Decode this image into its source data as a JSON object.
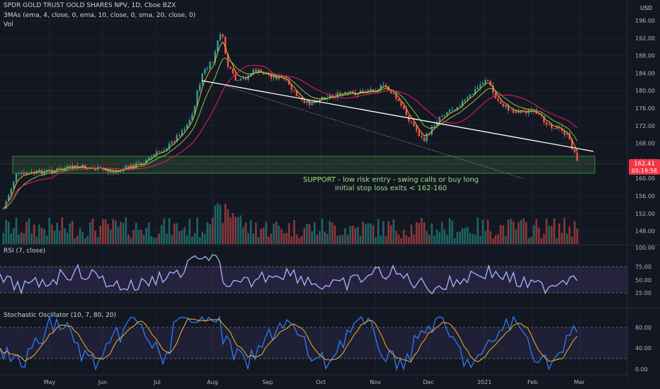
{
  "header": {
    "title": "SPDR GOLD TRUST GOLD SHARES NPV, 1D, Cboe BZX",
    "indicators": "3MAs (ema, 4, close, 0, ema, 10, close, 0, sma, 20, close, 0)",
    "volume": "Vol",
    "currency": "USD"
  },
  "price_axis": {
    "ticks": [
      "196.00",
      "192.00",
      "188.00",
      "184.00",
      "180.00",
      "176.00",
      "172.00",
      "168.00",
      "164.00",
      "160.00",
      "156.00",
      "152.00",
      "148.00"
    ]
  },
  "last_price": {
    "value": "162.41",
    "countdown": "05:19:58",
    "color": "#f23645"
  },
  "annotation": {
    "line1": "SUPPORT - low risk entry - swing calls or buy long",
    "line2": "initial stop loss exits < 162-160"
  },
  "rsi": {
    "label": "RSI (7, close)",
    "ticks": [
      "100.00",
      "75.00",
      "50.00",
      "25.00"
    ]
  },
  "stoch": {
    "label": "Stochastic Oscillator (10, 7, 80, 20)",
    "ticks": [
      "80.00",
      "40.00",
      "0.00"
    ]
  },
  "time_axis": {
    "labels": [
      "May",
      "Jun",
      "Jul",
      "Aug",
      "Sep",
      "Oct",
      "Nov",
      "Dec",
      "2021",
      "Feb",
      "Mar"
    ]
  },
  "colors": {
    "up": "#26a69a",
    "down": "#ef5350",
    "ema4": "#f7b32b",
    "ema10": "#8bc34a",
    "sma20": "#e91e63",
    "rsi_line": "#a3b8ff",
    "stoch_k": "#2f7cf6",
    "stoch_d": "#f7b32b",
    "support_zone": "#4caf50"
  }
}
